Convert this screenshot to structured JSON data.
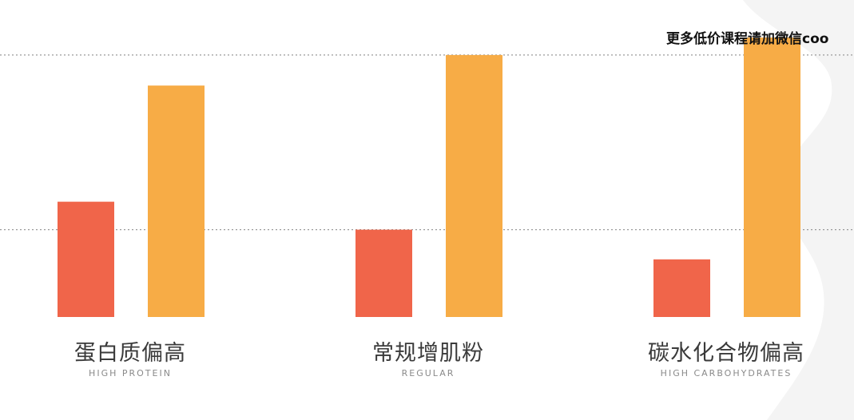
{
  "watermark": "更多低价课程请加微信coo",
  "colors": {
    "series_a": "#F0654A",
    "series_b": "#F7AC46",
    "grid": "#9a9a9a",
    "background_decoration": "#f3f3f3"
  },
  "chart_data": {
    "type": "bar",
    "categories": [
      "蛋白质偏高",
      "常规增肌粉",
      "碳水化合物偏高"
    ],
    "subtitles": [
      "HIGH PROTEIN",
      "REGULAR",
      "HIGH CARBOHYDRATES"
    ],
    "series": [
      {
        "values": [
          1.32,
          1.0,
          0.66
        ],
        "color": "#F0654A"
      },
      {
        "values": [
          2.65,
          3.0,
          3.2
        ],
        "color": "#F7AC46"
      }
    ],
    "ylim": [
      0,
      3.2
    ],
    "gridlines": [
      1,
      3
    ],
    "grid": true,
    "legend": "none",
    "title": "",
    "xlabel": "",
    "ylabel": ""
  }
}
